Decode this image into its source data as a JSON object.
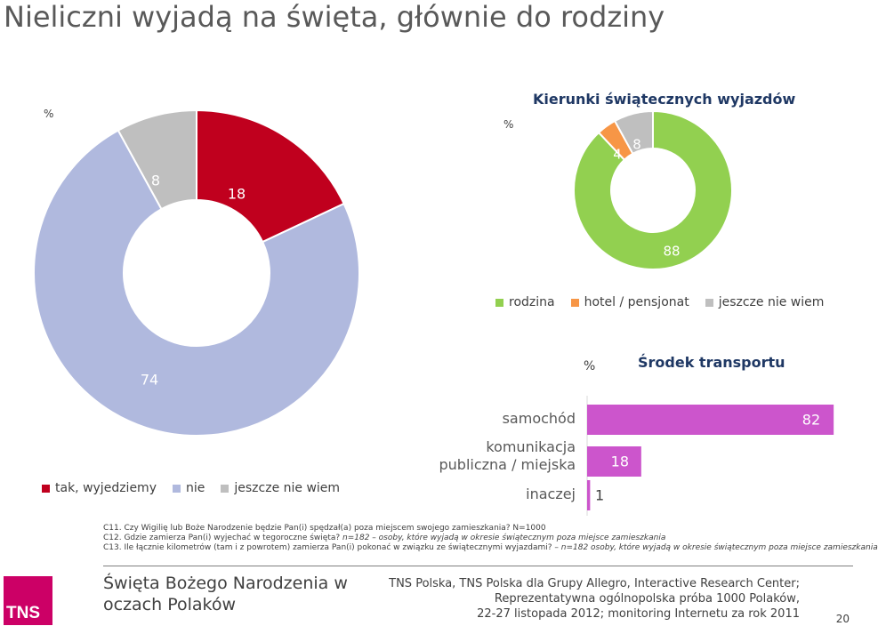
{
  "title": "Nieliczni wyjadą na święta, głównie do rodziny",
  "chart_data": [
    {
      "type": "pie",
      "unit_label": "%",
      "labels": [
        "tak, wyjedziemy",
        "nie",
        "jeszcze nie wiem"
      ],
      "values": [
        18,
        74,
        8
      ],
      "colors": [
        "#c0001e",
        "#b0b9de",
        "#bfbfbf"
      ]
    },
    {
      "type": "pie",
      "title": "Kierunki świątecznych wyjazdów",
      "unit_label": "%",
      "labels": [
        "rodzina",
        "hotel / pensjonat",
        "jeszcze nie wiem"
      ],
      "values": [
        88,
        4,
        8
      ],
      "colors": [
        "#92d050",
        "#f79646",
        "#bfbfbf"
      ]
    },
    {
      "type": "bar",
      "orientation": "horizontal",
      "title": "Środek transportu",
      "unit_label": "%",
      "categories": [
        "samochód",
        "komunikacja publiczna / miejska",
        "inaczej"
      ],
      "values": [
        82,
        18,
        1
      ],
      "color": "#cc55cc",
      "xlim": [
        0,
        100
      ]
    }
  ],
  "legend1": [
    {
      "label": "tak, wyjedziemy",
      "color": "#c0001e"
    },
    {
      "label": "nie",
      "color": "#b0b9de"
    },
    {
      "label": "jeszcze nie wiem",
      "color": "#bfbfbf"
    }
  ],
  "legend2": [
    {
      "label": "rodzina",
      "color": "#92d050"
    },
    {
      "label": "hotel / pensjonat",
      "color": "#f79646"
    },
    {
      "label": "jeszcze nie wiem",
      "color": "#bfbfbf"
    }
  ],
  "footnotes": {
    "c11": "C11. Czy Wigilię lub Boże Narodzenie będzie Pan(i) spędzał(a) poza miejscem swojego zamieszkania? N=1000",
    "c12_q": "C12. Gdzie zamierza Pan(i) wyjechać w tegoroczne święta?",
    "c12_n": "n=182 – osoby, które wyjadą w okresie świątecznym poza miejsce zamieszkania",
    "c13_q": "C13. Ile łącznie kilometrów (tam i z powrotem) zamierza Pan(i) pokonać w związku ze świątecznymi wyjazdami?",
    "c13_n": "– n=182 osoby, które wyjadą w okresie świątecznym poza miejsce zamieszkania"
  },
  "footer": {
    "logo": "TNS",
    "title": "Święta Bożego Narodzenia w oczach Polaków",
    "info_line1": "TNS Polska, TNS Polska dla Grupy Allegro, Interactive Research Center;",
    "info_line2": "Reprezentatywna ogólnopolska próba 1000 Polaków,",
    "info_line3": "22-27 listopada 2012; monitoring Internetu za rok 2011",
    "page": "20"
  }
}
